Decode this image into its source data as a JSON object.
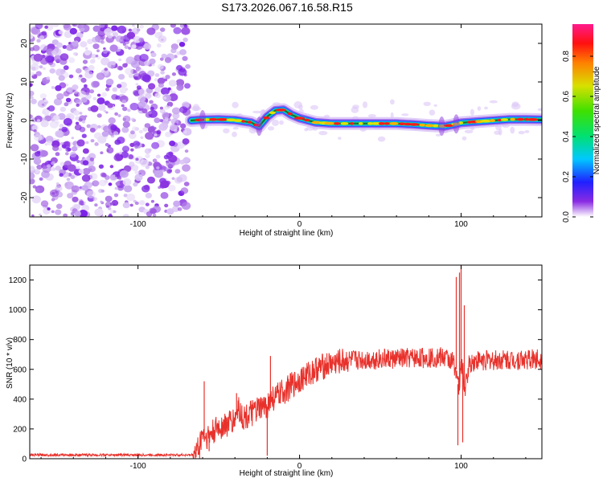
{
  "title": "S173.2026.067.16.58.R15",
  "chart_data": [
    {
      "type": "heatmap",
      "xlabel": "Height of straight line (km)",
      "ylabel": "Frequency (Hz)",
      "xlim": [
        -167,
        150
      ],
      "ylim": [
        -25,
        25
      ],
      "xticks": [
        -100,
        0,
        100
      ],
      "yticks": [
        -20,
        -10,
        0,
        10,
        20
      ],
      "track": {
        "x": [
          -67,
          -60,
          -50,
          -40,
          -30,
          -25,
          -20,
          -15,
          -10,
          -5,
          0,
          10,
          20,
          30,
          40,
          50,
          60,
          70,
          80,
          90,
          95,
          100,
          110,
          120,
          130,
          140,
          150
        ],
        "freq": [
          0,
          0.2,
          0.3,
          0.1,
          -0.5,
          -1.5,
          1,
          2.6,
          2.8,
          1.5,
          0.6,
          -0.5,
          -0.8,
          -0.8,
          -0.8,
          -0.8,
          -0.8,
          -1,
          -1.3,
          -1.5,
          -1.1,
          -0.6,
          -0.3,
          0,
          0.3,
          0.3,
          0.2
        ]
      },
      "colorbar": {
        "label": "Normalized spectral amplitude",
        "ticks": [
          0.0,
          0.2,
          0.4,
          0.6,
          0.8
        ],
        "tick_labels": [
          "0.0",
          "0.2",
          "0.4",
          "0.6",
          "0.8"
        ],
        "range": [
          0,
          0.96
        ]
      }
    },
    {
      "type": "line",
      "xlabel": "Height of straight line (km)",
      "ylabel": "SNR (10 * v/v)",
      "xlim": [
        -167,
        150
      ],
      "ylim": [
        0,
        1300
      ],
      "xticks": [
        -100,
        0,
        100
      ],
      "yticks": [
        0,
        200,
        400,
        600,
        800,
        1000,
        1200
      ],
      "color": "#e8312b",
      "series": [
        {
          "name": "SNR",
          "x": [
            -167,
            -140,
            -110,
            -80,
            -66,
            -62,
            -60,
            -58,
            -55,
            -50,
            -45,
            -40,
            -38,
            -35,
            -30,
            -25,
            -20,
            -18,
            -15,
            -10,
            -5,
            0,
            10,
            20,
            30,
            40,
            50,
            60,
            70,
            80,
            90,
            95,
            97,
            98,
            99,
            100,
            101,
            102,
            103,
            105,
            110,
            120,
            130,
            140,
            150
          ],
          "y": [
            25,
            25,
            25,
            25,
            25,
            80,
            180,
            140,
            160,
            210,
            230,
            260,
            350,
            270,
            300,
            330,
            350,
            400,
            410,
            450,
            490,
            530,
            600,
            640,
            660,
            665,
            670,
            670,
            675,
            680,
            680,
            650,
            600,
            500,
            480,
            640,
            600,
            450,
            500,
            640,
            660,
            660,
            665,
            665,
            670
          ]
        }
      ],
      "spikes": [
        {
          "x": -59,
          "y": 520
        },
        {
          "x": -56,
          "y": 50
        },
        {
          "x": -39,
          "y": 440
        },
        {
          "x": -20,
          "y": 20
        },
        {
          "x": -18,
          "y": 690
        },
        {
          "x": 97,
          "y": 1220
        },
        {
          "x": 98,
          "y": 90
        },
        {
          "x": 99,
          "y": 1250
        },
        {
          "x": 100,
          "y": 1300
        },
        {
          "x": 101,
          "y": 110
        },
        {
          "x": 102,
          "y": 1030
        }
      ]
    }
  ],
  "icons": {
    "colorbar": "rainbow-colorbar"
  }
}
